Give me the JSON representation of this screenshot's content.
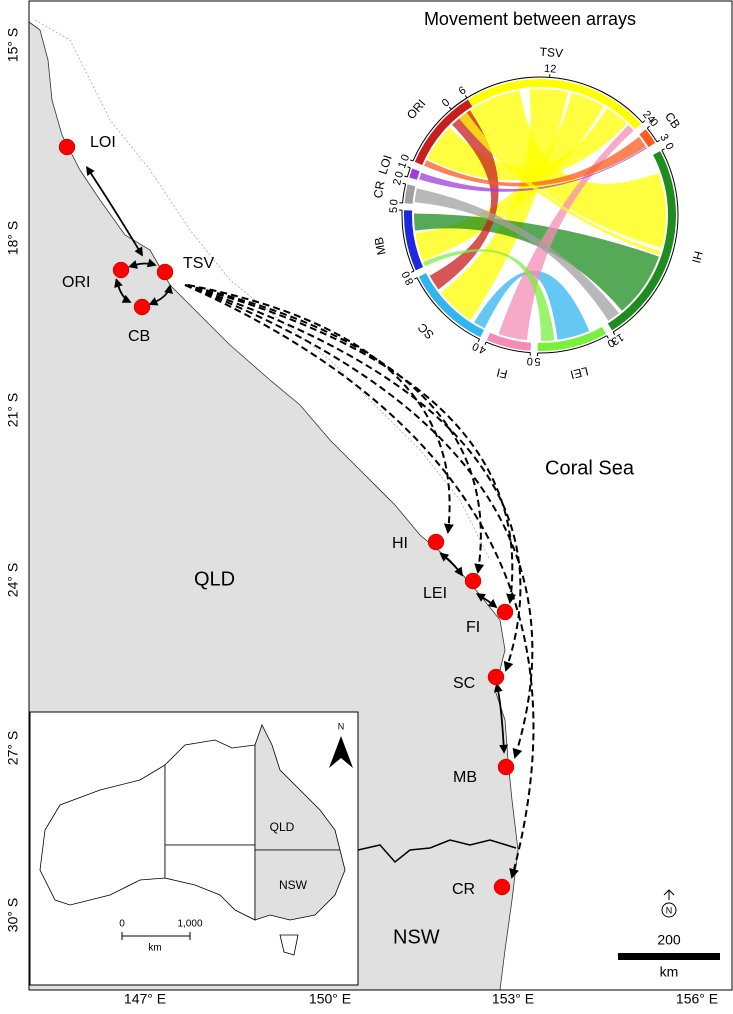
{
  "map": {
    "latitude_labels": [
      "15° S",
      "18° S",
      "21° S",
      "24° S",
      "27° S",
      "30° S"
    ],
    "longitude_labels": [
      "147° E",
      "150° E",
      "153° E",
      "156° E"
    ],
    "sites": [
      "LOI",
      "ORI",
      "TSV",
      "CB",
      "HI",
      "LEI",
      "FI",
      "SC",
      "MB",
      "CR"
    ],
    "regions": [
      "QLD",
      "NSW",
      "Coral Sea"
    ],
    "north": "N",
    "scale_bar": {
      "distance": "200",
      "unit": "km"
    }
  },
  "chord": {
    "title": "Movement between arrays",
    "sectors": [
      {
        "name": "TSV",
        "color": "#ffff00",
        "ticks": [
          0,
          12,
          24
        ]
      },
      {
        "name": "CB",
        "color": "#ff5a1e",
        "ticks": [
          0,
          3
        ]
      },
      {
        "name": "HI",
        "color": "#1e8c1e",
        "ticks": [
          0,
          13
        ]
      },
      {
        "name": "LEI",
        "color": "#78f03c",
        "ticks": [
          0,
          5
        ]
      },
      {
        "name": "FI",
        "color": "#f58cb4",
        "ticks": [
          0,
          4
        ]
      },
      {
        "name": "SC",
        "color": "#32b4f0",
        "ticks": [
          0,
          8
        ]
      },
      {
        "name": "MB",
        "color": "#1e28dc",
        "ticks": [
          0,
          5
        ]
      },
      {
        "name": "CR",
        "color": "#a0a0a0",
        "ticks": [
          0,
          2
        ]
      },
      {
        "name": "LOI",
        "color": "#a03cdc",
        "ticks": [
          0,
          1
        ]
      },
      {
        "name": "ORI",
        "color": "#c81e1e",
        "ticks": [
          0,
          6
        ]
      }
    ]
  },
  "inset": {
    "labels": [
      "QLD",
      "NSW"
    ],
    "scale": [
      "0",
      "1,000"
    ],
    "unit": "km",
    "north": "N"
  }
}
